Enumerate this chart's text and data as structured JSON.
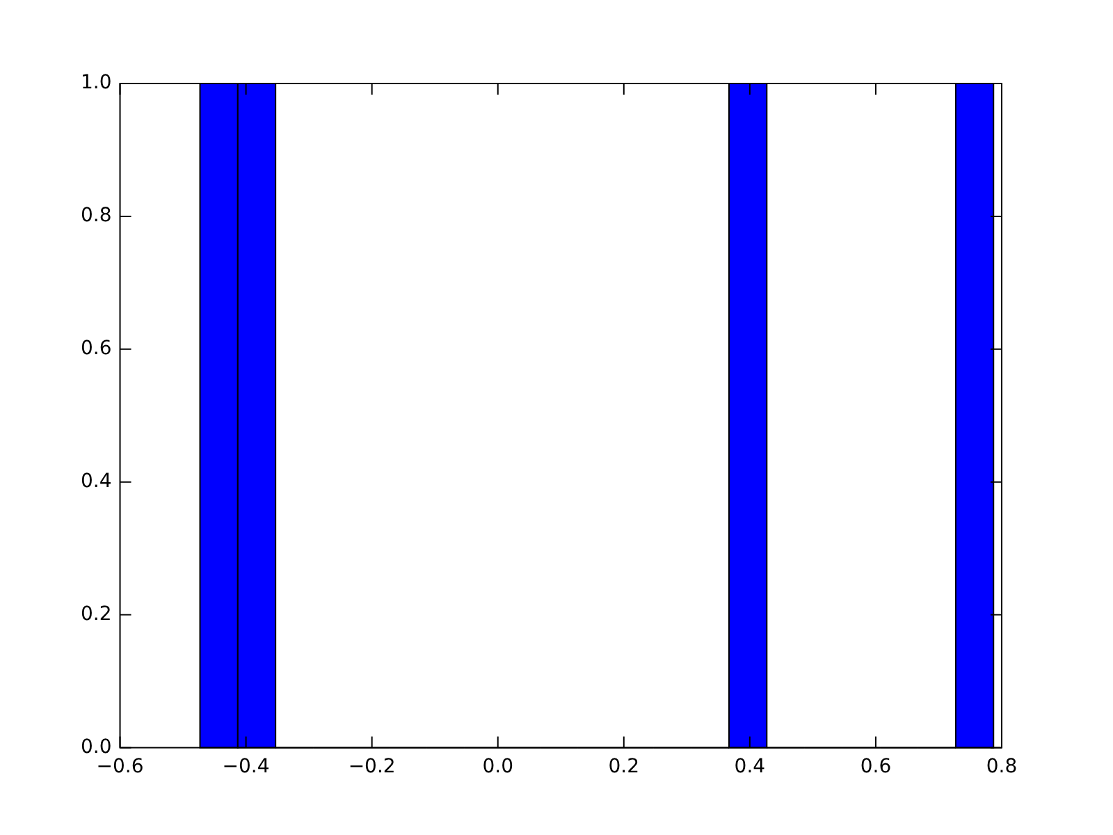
{
  "chart_data": {
    "type": "histogram",
    "bins": [
      -0.473,
      -0.413,
      -0.353,
      -0.293,
      -0.233,
      -0.173,
      -0.113,
      -0.053,
      0.007,
      0.067,
      0.127,
      0.187,
      0.247,
      0.307,
      0.367,
      0.427,
      0.487,
      0.547,
      0.607,
      0.667,
      0.727,
      0.787
    ],
    "values": [
      1,
      1,
      0,
      0,
      0,
      0,
      0,
      0,
      0,
      0,
      0,
      0,
      0,
      0,
      1,
      0,
      0,
      0,
      0,
      0,
      1
    ],
    "color": "#0000ff",
    "xlim": [
      -0.6,
      0.8
    ],
    "xticks": [
      {
        "value": -0.6,
        "label": "−0.6"
      },
      {
        "value": -0.4,
        "label": "−0.4"
      },
      {
        "value": -0.2,
        "label": "−0.2"
      },
      {
        "value": 0,
        "label": "0.0"
      },
      {
        "value": 0.2,
        "label": "0.2"
      },
      {
        "value": 0.4,
        "label": "0.4"
      },
      {
        "value": 0.6,
        "label": "0.6"
      },
      {
        "value": 0.8,
        "label": "0.8"
      }
    ],
    "ylim": [
      0,
      1
    ],
    "yticks": [
      {
        "value": 0,
        "label": "0.0"
      },
      {
        "value": 0.2,
        "label": "0.2"
      },
      {
        "value": 0.4,
        "label": "0.4"
      },
      {
        "value": 0.6,
        "label": "0.6"
      },
      {
        "value": 0.8,
        "label": "0.8"
      },
      {
        "value": 1,
        "label": "1.0"
      }
    ],
    "grid": false,
    "legend": false
  }
}
